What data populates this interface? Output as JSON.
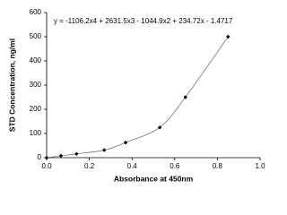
{
  "chart_data": {
    "type": "scatter",
    "annotation": "y = -1106.2x4 + 2631.5x3 - 1044.9x2 + 234.72x - 1.4717",
    "x_label": "Absorbance at 450nm",
    "y_label": "STD Concentration, ng/ml",
    "x": [
      0,
      0.067,
      0.14,
      0.27,
      0.37,
      0.53,
      0.65,
      0.85
    ],
    "values": [
      0,
      7.8,
      15.6,
      31.25,
      62.5,
      125,
      250,
      500
    ],
    "color": "#000000",
    "fit_line": true,
    "xlim": [
      0,
      1.0
    ],
    "xticks": [
      {
        "value": 0,
        "label": "0.0"
      },
      0.2,
      0.4,
      0.6,
      0.8,
      {
        "value": 1.0,
        "label": "1.0"
      }
    ],
    "ylim": [
      0,
      600
    ],
    "yticks": [
      0,
      100,
      200,
      300,
      400,
      500,
      600
    ],
    "grid": false
  }
}
